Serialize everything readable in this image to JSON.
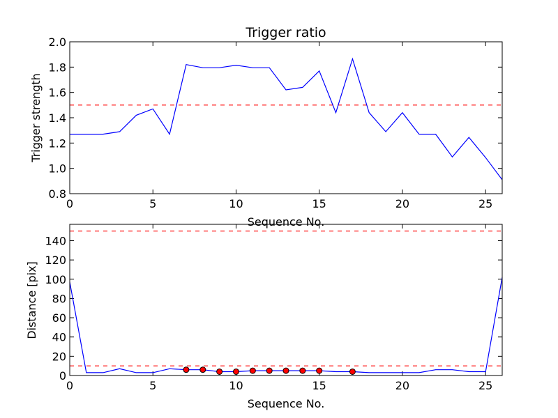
{
  "chart_data": [
    {
      "type": "line",
      "title": "Trigger ratio",
      "xlabel": "Sequence No.",
      "ylabel": "Trigger strength",
      "xlim": [
        0,
        26
      ],
      "ylim": [
        0.8,
        2.0
      ],
      "xticks": [
        "0",
        "5",
        "10",
        "15",
        "20",
        "25"
      ],
      "yticks": [
        "0.8",
        "1.0",
        "1.2",
        "1.4",
        "1.6",
        "1.8",
        "2.0"
      ],
      "grid": false,
      "series": [
        {
          "style": "line",
          "color": "#0000ff",
          "x": [
            0,
            1,
            2,
            3,
            4,
            5,
            6,
            7,
            8,
            9,
            10,
            11,
            12,
            13,
            14,
            15,
            16,
            17,
            18,
            19,
            20,
            21,
            22,
            23,
            24,
            25,
            26
          ],
          "y": [
            1.27,
            1.27,
            1.27,
            1.29,
            1.42,
            1.47,
            1.27,
            1.82,
            1.795,
            1.795,
            1.815,
            1.795,
            1.795,
            1.62,
            1.64,
            1.77,
            1.44,
            1.865,
            1.44,
            1.29,
            1.44,
            1.27,
            1.27,
            1.09,
            1.245,
            1.085,
            0.91
          ]
        }
      ],
      "hlines": [
        {
          "y": 1.5,
          "color": "#ff0000",
          "style": "dashed"
        }
      ]
    },
    {
      "type": "line",
      "title": "",
      "xlabel": "Sequence No.",
      "ylabel": "Distance [pix]",
      "xlim": [
        0,
        26
      ],
      "ylim": [
        0,
        157
      ],
      "xticks": [
        "0",
        "5",
        "10",
        "15",
        "20",
        "25"
      ],
      "yticks": [
        "0",
        "20",
        "40",
        "60",
        "80",
        "100",
        "120",
        "140"
      ],
      "grid": false,
      "series": [
        {
          "style": "line",
          "color": "#0000ff",
          "x": [
            0,
            1,
            2,
            3,
            4,
            5,
            6,
            7,
            8,
            9,
            10,
            11,
            12,
            13,
            14,
            15,
            16,
            17,
            18,
            19,
            20,
            21,
            22,
            23,
            24,
            25,
            26
          ],
          "y": [
            97,
            3,
            3,
            7,
            3,
            3,
            7,
            6,
            6,
            4,
            4,
            5,
            5,
            5,
            5,
            5,
            4,
            4,
            3,
            3,
            3,
            3,
            6,
            6,
            4,
            4,
            102
          ]
        },
        {
          "style": "markers",
          "color": "#ff0000",
          "x": [
            7,
            8,
            9,
            10,
            11,
            12,
            13,
            14,
            15,
            17
          ],
          "y": [
            6,
            6,
            4,
            4,
            5,
            5,
            5,
            5,
            5,
            4
          ]
        }
      ],
      "hlines": [
        {
          "y": 150,
          "color": "#ff0000",
          "style": "dashed"
        },
        {
          "y": 10,
          "color": "#ff0000",
          "style": "dashed"
        }
      ]
    }
  ]
}
